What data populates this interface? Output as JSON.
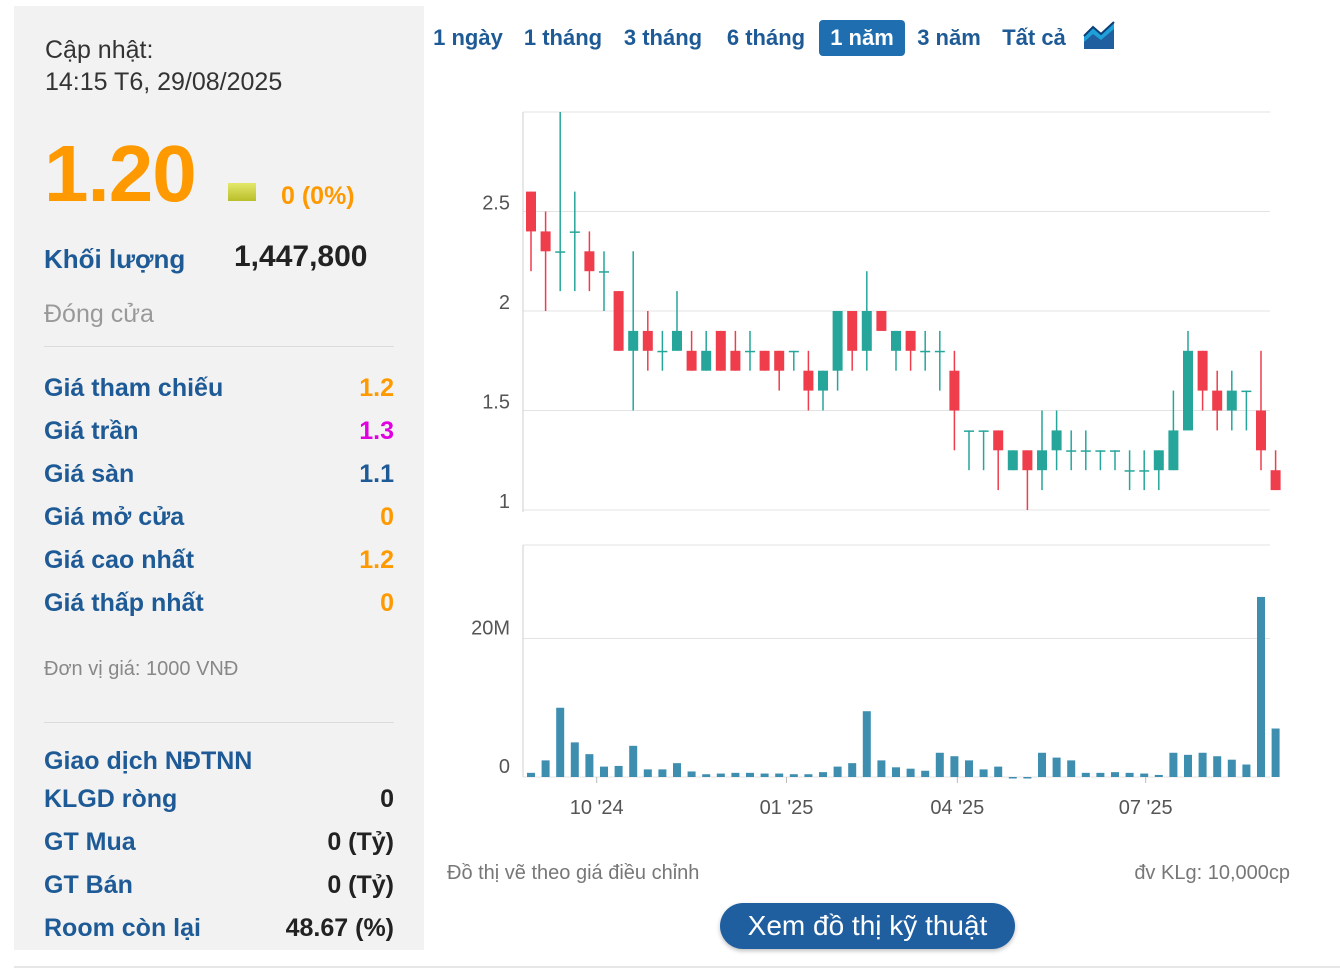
{
  "summary": {
    "updated_label": "Cập nhật:",
    "updated_time": "14:15 T6, 29/08/2025",
    "price": "1.20",
    "change": "0 (0%)",
    "volume_label": "Khối lượng",
    "volume_value": "1,447,800",
    "session_status": "Đóng cửa",
    "price_rows": [
      {
        "label": "Giá tham chiếu",
        "value": "1.2",
        "color": "#ff9900"
      },
      {
        "label": "Giá trần",
        "value": "1.3",
        "color": "#e000e0"
      },
      {
        "label": "Giá sàn",
        "value": "1.1",
        "color": "#1d5a96"
      },
      {
        "label": "Giá mở cửa",
        "value": "0",
        "color": "#ff9900"
      },
      {
        "label": "Giá cao nhất",
        "value": "1.2",
        "color": "#ff9900"
      },
      {
        "label": "Giá thấp nhất",
        "value": "0",
        "color": "#ff9900"
      }
    ],
    "unit_note": "Đơn vị giá: 1000 VNĐ",
    "foreign": {
      "title": "Giao dịch NĐTNN",
      "rows": [
        {
          "label": "KLGD ròng",
          "value": "0"
        },
        {
          "label": "GT Mua",
          "value": "0 (Tỷ)"
        },
        {
          "label": "GT Bán",
          "value": "0 (Tỷ)"
        },
        {
          "label": "Room còn lại",
          "value": "48.67 (%)"
        }
      ]
    }
  },
  "range_tabs": [
    "1 ngày",
    "1 tháng",
    "3 tháng",
    "6 tháng",
    "1 năm",
    "3 năm",
    "Tất cả"
  ],
  "active_tab": "1 năm",
  "icons": {
    "chart_toggle": "area-chart-icon",
    "price_flag": "flat-price-icon"
  },
  "colors": {
    "up": "#26a69a",
    "down": "#ef3d4c",
    "volume": "#3e8eb0",
    "accent": "#1f6fb0"
  },
  "notes": {
    "adjusted": "Đồ thị vẽ theo giá điều chỉnh",
    "volume_unit": "đv KLg: 10,000cp"
  },
  "tech_button": "Xem đồ thị kỹ thuật",
  "chart_data": {
    "type": "candlestick",
    "price_axis": {
      "ticks": [
        "2.5",
        "2",
        "1.5",
        "1"
      ],
      "tick_values": [
        2.5,
        2,
        1.5,
        1
      ],
      "ylim": [
        0.99,
        3.0
      ]
    },
    "volume_axis": {
      "ticks": [
        "20M",
        "0"
      ],
      "tick_values": [
        20000000,
        0
      ],
      "ylim": [
        0,
        33500000
      ]
    },
    "x_labels": [
      {
        "label": "10 '24",
        "index": 4.5
      },
      {
        "label": "01 '25",
        "index": 17.5
      },
      {
        "label": "04 '25",
        "index": 29.2
      },
      {
        "label": "07 '25",
        "index": 42.1
      }
    ],
    "candles": [
      {
        "o": 2.6,
        "h": 2.6,
        "l": 2.2,
        "c": 2.4,
        "v": 600000
      },
      {
        "o": 2.4,
        "h": 2.5,
        "l": 2.0,
        "c": 2.3,
        "v": 2400000
      },
      {
        "o": 2.3,
        "h": 3.0,
        "l": 2.1,
        "c": 2.3,
        "v": 10000000
      },
      {
        "o": 2.4,
        "h": 2.6,
        "l": 2.1,
        "c": 2.4,
        "v": 5000000
      },
      {
        "o": 2.3,
        "h": 2.4,
        "l": 2.1,
        "c": 2.2,
        "v": 3300000
      },
      {
        "o": 2.2,
        "h": 2.3,
        "l": 2.0,
        "c": 2.2,
        "v": 1500000
      },
      {
        "o": 2.1,
        "h": 2.1,
        "l": 1.8,
        "c": 1.8,
        "v": 1600000
      },
      {
        "o": 1.8,
        "h": 2.3,
        "l": 1.5,
        "c": 1.9,
        "v": 4500000
      },
      {
        "o": 1.9,
        "h": 2.0,
        "l": 1.7,
        "c": 1.8,
        "v": 1100000
      },
      {
        "o": 1.8,
        "h": 1.9,
        "l": 1.7,
        "c": 1.8,
        "v": 1100000
      },
      {
        "o": 1.8,
        "h": 2.1,
        "l": 1.8,
        "c": 1.9,
        "v": 2000000
      },
      {
        "o": 1.8,
        "h": 1.9,
        "l": 1.7,
        "c": 1.7,
        "v": 800000
      },
      {
        "o": 1.7,
        "h": 1.9,
        "l": 1.7,
        "c": 1.8,
        "v": 400000
      },
      {
        "o": 1.9,
        "h": 1.9,
        "l": 1.7,
        "c": 1.7,
        "v": 500000
      },
      {
        "o": 1.8,
        "h": 1.9,
        "l": 1.7,
        "c": 1.7,
        "v": 600000
      },
      {
        "o": 1.8,
        "h": 1.9,
        "l": 1.7,
        "c": 1.8,
        "v": 600000
      },
      {
        "o": 1.8,
        "h": 1.8,
        "l": 1.7,
        "c": 1.7,
        "v": 500000
      },
      {
        "o": 1.8,
        "h": 1.8,
        "l": 1.6,
        "c": 1.7,
        "v": 500000
      },
      {
        "o": 1.8,
        "h": 1.8,
        "l": 1.7,
        "c": 1.8,
        "v": 400000
      },
      {
        "o": 1.7,
        "h": 1.8,
        "l": 1.5,
        "c": 1.6,
        "v": 400000
      },
      {
        "o": 1.6,
        "h": 1.7,
        "l": 1.5,
        "c": 1.7,
        "v": 700000
      },
      {
        "o": 1.7,
        "h": 2.0,
        "l": 1.6,
        "c": 2.0,
        "v": 1500000
      },
      {
        "o": 2.0,
        "h": 2.0,
        "l": 1.7,
        "c": 1.8,
        "v": 2000000
      },
      {
        "o": 1.8,
        "h": 2.2,
        "l": 1.7,
        "c": 2.0,
        "v": 9500000
      },
      {
        "o": 2.0,
        "h": 2.0,
        "l": 1.9,
        "c": 1.9,
        "v": 2400000
      },
      {
        "o": 1.8,
        "h": 1.9,
        "l": 1.7,
        "c": 1.9,
        "v": 1400000
      },
      {
        "o": 1.9,
        "h": 1.9,
        "l": 1.7,
        "c": 1.8,
        "v": 1200000
      },
      {
        "o": 1.8,
        "h": 1.9,
        "l": 1.7,
        "c": 1.8,
        "v": 900000
      },
      {
        "o": 1.8,
        "h": 1.9,
        "l": 1.6,
        "c": 1.8,
        "v": 3500000
      },
      {
        "o": 1.7,
        "h": 1.8,
        "l": 1.3,
        "c": 1.5,
        "v": 3000000
      },
      {
        "o": 1.4,
        "h": 1.4,
        "l": 1.2,
        "c": 1.4,
        "v": 2400000
      },
      {
        "o": 1.4,
        "h": 1.4,
        "l": 1.2,
        "c": 1.4,
        "v": 1100000
      },
      {
        "o": 1.4,
        "h": 1.4,
        "l": 1.1,
        "c": 1.3,
        "v": 1500000
      },
      {
        "o": 1.2,
        "h": 1.3,
        "l": 1.2,
        "c": 1.3,
        "v": 0
      },
      {
        "o": 1.3,
        "h": 1.3,
        "l": 1.0,
        "c": 1.2,
        "v": 0
      },
      {
        "o": 1.2,
        "h": 1.5,
        "l": 1.1,
        "c": 1.3,
        "v": 3500000
      },
      {
        "o": 1.3,
        "h": 1.5,
        "l": 1.2,
        "c": 1.4,
        "v": 2800000
      },
      {
        "o": 1.3,
        "h": 1.4,
        "l": 1.2,
        "c": 1.3,
        "v": 2400000
      },
      {
        "o": 1.3,
        "h": 1.4,
        "l": 1.2,
        "c": 1.3,
        "v": 600000
      },
      {
        "o": 1.3,
        "h": 1.3,
        "l": 1.2,
        "c": 1.3,
        "v": 600000
      },
      {
        "o": 1.3,
        "h": 1.3,
        "l": 1.2,
        "c": 1.3,
        "v": 700000
      },
      {
        "o": 1.2,
        "h": 1.3,
        "l": 1.1,
        "c": 1.2,
        "v": 600000
      },
      {
        "o": 1.2,
        "h": 1.3,
        "l": 1.1,
        "c": 1.2,
        "v": 500000
      },
      {
        "o": 1.2,
        "h": 1.3,
        "l": 1.1,
        "c": 1.3,
        "v": 300000
      },
      {
        "o": 1.2,
        "h": 1.6,
        "l": 1.2,
        "c": 1.4,
        "v": 3500000
      },
      {
        "o": 1.4,
        "h": 1.9,
        "l": 1.4,
        "c": 1.8,
        "v": 3200000
      },
      {
        "o": 1.8,
        "h": 1.8,
        "l": 1.5,
        "c": 1.6,
        "v": 3500000
      },
      {
        "o": 1.6,
        "h": 1.7,
        "l": 1.4,
        "c": 1.5,
        "v": 3000000
      },
      {
        "o": 1.5,
        "h": 1.7,
        "l": 1.4,
        "c": 1.6,
        "v": 2500000
      },
      {
        "o": 1.6,
        "h": 1.6,
        "l": 1.4,
        "c": 1.6,
        "v": 1800000
      },
      {
        "o": 1.5,
        "h": 1.8,
        "l": 1.2,
        "c": 1.3,
        "v": 26000000
      },
      {
        "o": 1.2,
        "h": 1.3,
        "l": 1.1,
        "c": 1.1,
        "v": 7000000
      }
    ]
  }
}
